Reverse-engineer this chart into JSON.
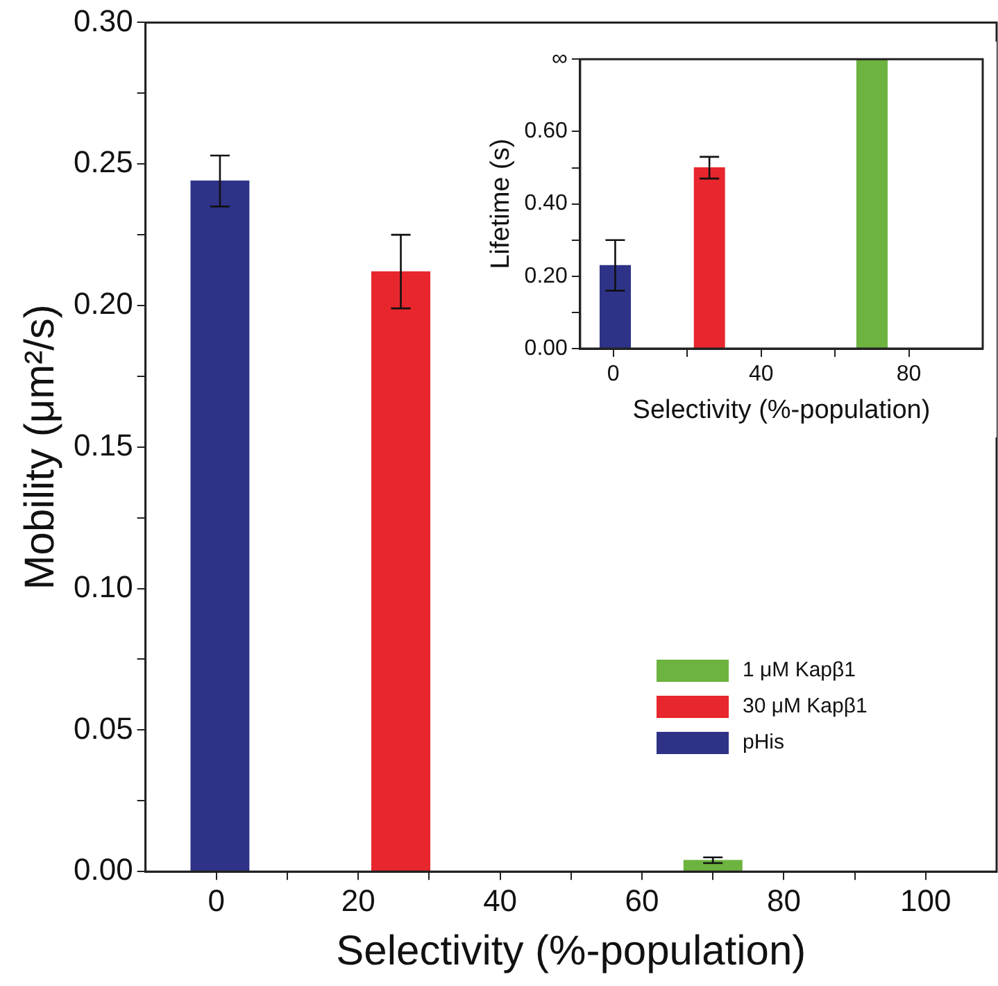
{
  "chart_data": [
    {
      "type": "bar",
      "xlabel": "Selectivity (%-population)",
      "ylabel": "Mobility (μm²/s)",
      "xlim": [
        -10,
        110
      ],
      "xticks": [
        0,
        {
          "value": 10,
          "label": null
        },
        20,
        {
          "value": 30,
          "label": null
        },
        40,
        {
          "value": 50,
          "label": null
        },
        60,
        {
          "value": 70,
          "label": null
        },
        80,
        {
          "value": 90,
          "label": null
        },
        100
      ],
      "ylim": [
        0,
        0.3
      ],
      "yticks": [
        {
          "value": 0,
          "label": "0.00"
        },
        {
          "value": 0.025,
          "label": null
        },
        0.05,
        {
          "value": 0.075,
          "label": null
        },
        {
          "value": 0.1,
          "label": "0.10"
        },
        {
          "value": 0.125,
          "label": null
        },
        0.15,
        {
          "value": 0.175,
          "label": null
        },
        {
          "value": 0.2,
          "label": "0.20"
        },
        {
          "value": 0.225,
          "label": null
        },
        0.25,
        {
          "value": 0.275,
          "label": null
        },
        {
          "value": 0.3,
          "label": "0.30"
        }
      ],
      "legend": "right",
      "grid": false,
      "series": [
        {
          "name": "1 μM Kapβ1",
          "color": "#6db33f",
          "x": [
            70
          ],
          "values": [
            0.004
          ],
          "errors": [
            [
              0.003,
              0.005
            ]
          ]
        },
        {
          "name": "30 μM Kapβ1",
          "color": "#e8262d",
          "x": [
            26
          ],
          "values": [
            0.212
          ],
          "errors": [
            [
              0.199,
              0.225
            ]
          ]
        },
        {
          "name": "pHis",
          "color": "#2e3388",
          "x": [
            0.5
          ],
          "values": [
            0.244
          ],
          "errors": [
            [
              0.235,
              0.253
            ]
          ]
        }
      ]
    },
    {
      "type": "bar",
      "xlabel": "Selectivity (%-population)",
      "ylabel": "Lifetime (s)",
      "xlim": [
        -9,
        100
      ],
      "xticks": [
        0,
        {
          "value": 20,
          "label": null
        },
        40,
        {
          "value": 60,
          "label": null
        },
        80
      ],
      "ylim": [
        0,
        0.8
      ],
      "yticks": [
        {
          "value": 0,
          "label": "0.00"
        },
        {
          "value": 0.1,
          "label": null
        },
        {
          "value": 0.2,
          "label": "0.20"
        },
        {
          "value": 0.3,
          "label": null
        },
        {
          "value": 0.4,
          "label": "0.40"
        },
        {
          "value": 0.5,
          "label": null
        },
        {
          "value": 0.6,
          "label": "0.60"
        },
        {
          "value": 0.8,
          "label": "∞"
        }
      ],
      "legend": false,
      "grid": false,
      "series": [
        {
          "color": "#6db33f",
          "x": [
            70
          ],
          "values": [
            0.8
          ],
          "errors": [
            null
          ]
        },
        {
          "color": "#e8262d",
          "x": [
            26
          ],
          "values": [
            0.5
          ],
          "errors": [
            [
              0.47,
              0.53
            ]
          ]
        },
        {
          "color": "#2e3388",
          "x": [
            0.5
          ],
          "values": [
            0.23
          ],
          "errors": [
            [
              0.16,
              0.3
            ]
          ]
        }
      ]
    }
  ]
}
